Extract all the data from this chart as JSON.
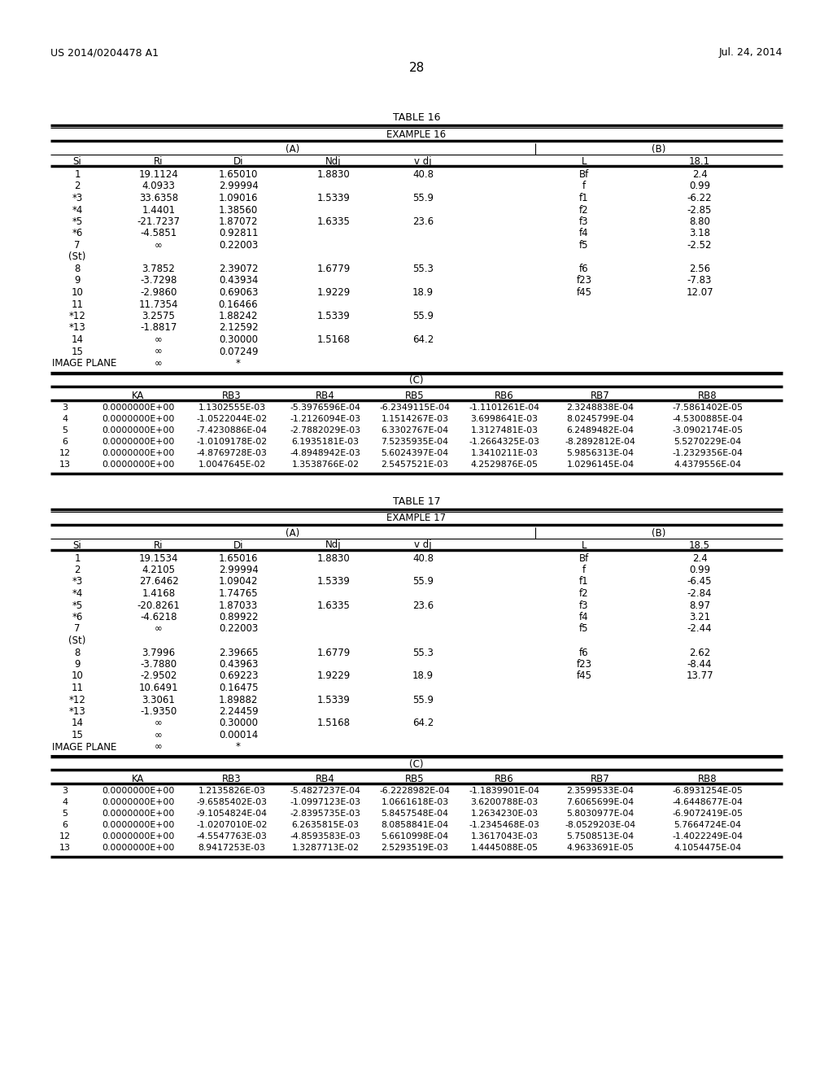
{
  "header_left": "US 2014/0204478 A1",
  "header_right": "Jul. 24, 2014",
  "page_number": "28",
  "table16_title": "TABLE 16",
  "table16_example": "EXAMPLE 16",
  "table16_A_header": "(A)",
  "table16_B_header": "(B)",
  "table16_col_headers": [
    "Si",
    "Ri",
    "Di",
    "Ndj",
    "v dj",
    "L",
    "18.1"
  ],
  "table16_A_rows": [
    [
      "1",
      "19.1124",
      "1.65010",
      "1.8830",
      "40.8",
      "Bf",
      "2.4"
    ],
    [
      "2",
      "4.0933",
      "2.99994",
      "",
      "",
      "f",
      "0.99"
    ],
    [
      "*3",
      "33.6358",
      "1.09016",
      "1.5339",
      "55.9",
      "f1",
      "-6.22"
    ],
    [
      "*4",
      "1.4401",
      "1.38560",
      "",
      "",
      "f2",
      "-2.85"
    ],
    [
      "*5",
      "-21.7237",
      "1.87072",
      "1.6335",
      "23.6",
      "f3",
      "8.80"
    ],
    [
      "*6",
      "-4.5851",
      "0.92811",
      "",
      "",
      "f4",
      "3.18"
    ],
    [
      "7",
      "∞",
      "0.22003",
      "",
      "",
      "f5",
      "-2.52"
    ],
    [
      "(St)",
      "",
      "",
      "",
      "",
      "",
      ""
    ],
    [
      "8",
      "3.7852",
      "2.39072",
      "1.6779",
      "55.3",
      "f6",
      "2.56"
    ],
    [
      "9",
      "-3.7298",
      "0.43934",
      "",
      "",
      "f23",
      "-7.83"
    ],
    [
      "10",
      "-2.9860",
      "0.69063",
      "1.9229",
      "18.9",
      "f45",
      "12.07"
    ],
    [
      "11",
      "11.7354",
      "0.16466",
      "",
      "",
      "",
      ""
    ],
    [
      "*12",
      "3.2575",
      "1.88242",
      "1.5339",
      "55.9",
      "",
      ""
    ],
    [
      "*13",
      "-1.8817",
      "2.12592",
      "",
      "",
      "",
      ""
    ],
    [
      "14",
      "∞",
      "0.30000",
      "1.5168",
      "64.2",
      "",
      ""
    ],
    [
      "15",
      "∞",
      "0.07249",
      "",
      "",
      "",
      ""
    ],
    [
      "IMAGE PLANE",
      "∞",
      "*",
      "",
      "",
      "",
      ""
    ]
  ],
  "table16_C_header": "(C)",
  "table16_C_col_headers": [
    "",
    "KA",
    "RB3",
    "RB4",
    "RB5",
    "RB6",
    "RB7",
    "RB8"
  ],
  "table16_C_rows": [
    [
      "3",
      "0.0000000E+00",
      "1.1302555E-03",
      "-5.3976596E-04",
      "-6.2349115E-04",
      "-1.1101261E-04",
      "2.3248838E-04",
      "-7.5861402E-05"
    ],
    [
      "4",
      "0.0000000E+00",
      "-1.0522044E-02",
      "-1.2126094E-03",
      "1.1514267E-03",
      "3.6998641E-03",
      "8.0245799E-04",
      "-4.5300885E-04"
    ],
    [
      "5",
      "0.0000000E+00",
      "-7.4230886E-04",
      "-2.7882029E-03",
      "6.3302767E-04",
      "1.3127481E-03",
      "6.2489482E-04",
      "-3.0902174E-05"
    ],
    [
      "6",
      "0.0000000E+00",
      "-1.0109178E-02",
      "6.1935181E-03",
      "7.5235935E-04",
      "-1.2664325E-03",
      "-8.2892812E-04",
      "5.5270229E-04"
    ],
    [
      "12",
      "0.0000000E+00",
      "-4.8769728E-03",
      "-4.8948942E-03",
      "5.6024397E-04",
      "1.3410211E-03",
      "5.9856313E-04",
      "-1.2329356E-04"
    ],
    [
      "13",
      "0.0000000E+00",
      "1.0047645E-02",
      "1.3538766E-02",
      "2.5457521E-03",
      "4.2529876E-05",
      "1.0296145E-04",
      "4.4379556E-04"
    ]
  ],
  "table17_title": "TABLE 17",
  "table17_example": "EXAMPLE 17",
  "table17_A_header": "(A)",
  "table17_B_header": "(B)",
  "table17_col_headers": [
    "Si",
    "Ri",
    "Di",
    "Ndj",
    "v dj",
    "L",
    "18.5"
  ],
  "table17_A_rows": [
    [
      "1",
      "19.1534",
      "1.65016",
      "1.8830",
      "40.8",
      "Bf",
      "2.4"
    ],
    [
      "2",
      "4.2105",
      "2.99994",
      "",
      "",
      "f",
      "0.99"
    ],
    [
      "*3",
      "27.6462",
      "1.09042",
      "1.5339",
      "55.9",
      "f1",
      "-6.45"
    ],
    [
      "*4",
      "1.4168",
      "1.74765",
      "",
      "",
      "f2",
      "-2.84"
    ],
    [
      "*5",
      "-20.8261",
      "1.87033",
      "1.6335",
      "23.6",
      "f3",
      "8.97"
    ],
    [
      "*6",
      "-4.6218",
      "0.89922",
      "",
      "",
      "f4",
      "3.21"
    ],
    [
      "7",
      "∞",
      "0.22003",
      "",
      "",
      "f5",
      "-2.44"
    ],
    [
      "(St)",
      "",
      "",
      "",
      "",
      "",
      ""
    ],
    [
      "8",
      "3.7996",
      "2.39665",
      "1.6779",
      "55.3",
      "f6",
      "2.62"
    ],
    [
      "9",
      "-3.7880",
      "0.43963",
      "",
      "",
      "f23",
      "-8.44"
    ],
    [
      "10",
      "-2.9502",
      "0.69223",
      "1.9229",
      "18.9",
      "f45",
      "13.77"
    ],
    [
      "11",
      "10.6491",
      "0.16475",
      "",
      "",
      "",
      ""
    ],
    [
      "*12",
      "3.3061",
      "1.89882",
      "1.5339",
      "55.9",
      "",
      ""
    ],
    [
      "*13",
      "-1.9350",
      "2.24459",
      "",
      "",
      "",
      ""
    ],
    [
      "14",
      "∞",
      "0.30000",
      "1.5168",
      "64.2",
      "",
      ""
    ],
    [
      "15",
      "∞",
      "0.00014",
      "",
      "",
      "",
      ""
    ],
    [
      "IMAGE PLANE",
      "∞",
      "*",
      "",
      "",
      "",
      ""
    ]
  ],
  "table17_C_header": "(C)",
  "table17_C_col_headers": [
    "",
    "KA",
    "RB3",
    "RB4",
    "RB5",
    "RB6",
    "RB7",
    "RB8"
  ],
  "table17_C_rows": [
    [
      "3",
      "0.0000000E+00",
      "1.2135826E-03",
      "-5.4827237E-04",
      "-6.2228982E-04",
      "-1.1839901E-04",
      "2.3599533E-04",
      "-6.8931254E-05"
    ],
    [
      "4",
      "0.0000000E+00",
      "-9.6585402E-03",
      "-1.0997123E-03",
      "1.0661618E-03",
      "3.6200788E-03",
      "7.6065699E-04",
      "-4.6448677E-04"
    ],
    [
      "5",
      "0.0000000E+00",
      "-9.1054824E-04",
      "-2.8395735E-03",
      "5.8457548E-04",
      "1.2634230E-03",
      "5.8030977E-04",
      "-6.9072419E-05"
    ],
    [
      "6",
      "0.0000000E+00",
      "-1.0207010E-02",
      "6.2635815E-03",
      "8.0858841E-04",
      "-1.2345468E-03",
      "-8.0529203E-04",
      "5.7664724E-04"
    ],
    [
      "12",
      "0.0000000E+00",
      "-4.5547763E-03",
      "-4.8593583E-03",
      "5.6610998E-04",
      "1.3617043E-03",
      "5.7508513E-04",
      "-1.4022249E-04"
    ],
    [
      "13",
      "0.0000000E+00",
      "8.9417253E-03",
      "1.3287713E-02",
      "2.5293519E-03",
      "1.4445088E-05",
      "4.9633691E-05",
      "4.1054475E-04"
    ]
  ]
}
